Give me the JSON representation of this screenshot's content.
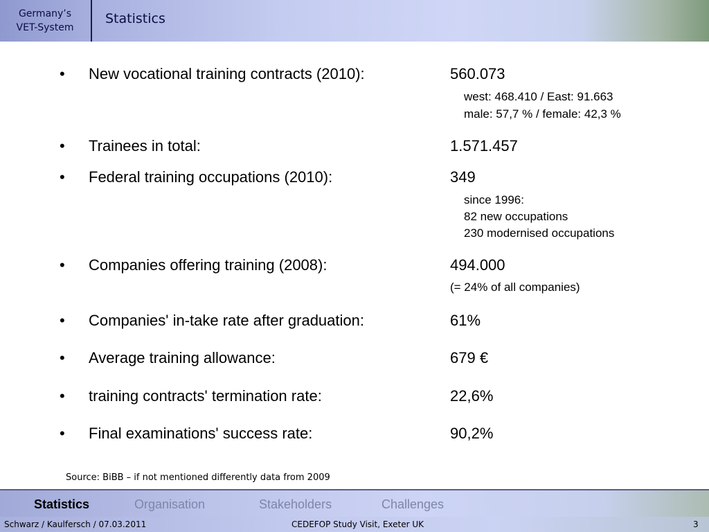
{
  "header": {
    "brand_line1": "Germany’s",
    "brand_line2": "VET-System",
    "title": "Statistics"
  },
  "stats": [
    {
      "label": "New vocational training contracts (2010):",
      "value": "560.073",
      "notes": [
        "west: 468.410  / East: 91.663",
        "male: 57,7 %  / female: 42,3 %"
      ]
    },
    {
      "label": "Trainees in total:",
      "value": "1.571.457",
      "notes": []
    },
    {
      "label": "Federal training occupations (2010):",
      "value": "349",
      "notes": [
        "since 1996:",
        "82 new occupations",
        "230 modernised occupations"
      ]
    },
    {
      "label": "Companies offering training (2008):",
      "value": "494.000",
      "notes": [
        "(= 24% of all companies)"
      ]
    },
    {
      "label": "Companies' in-take rate after graduation:",
      "value": "61%",
      "notes": []
    },
    {
      "label": "Average training allowance:",
      "value": "679 €",
      "notes": []
    },
    {
      "label": "training contracts' termination rate:",
      "value": "22,6%",
      "notes": []
    },
    {
      "label": "Final examinations' success rate:",
      "value": "90,2%",
      "notes": []
    }
  ],
  "bullet_char": "•",
  "source": "Source: BiBB – if not mentioned differently data from 2009",
  "nav": {
    "items": [
      "Statistics",
      "Organisation",
      "Stakeholders",
      "Challenges"
    ],
    "active": "Statistics"
  },
  "footer": {
    "authors": "Schwarz / Kaulfersch / 07.03.2011",
    "event": "CEDEFOP Study Visit, Exeter UK",
    "page": "3"
  }
}
